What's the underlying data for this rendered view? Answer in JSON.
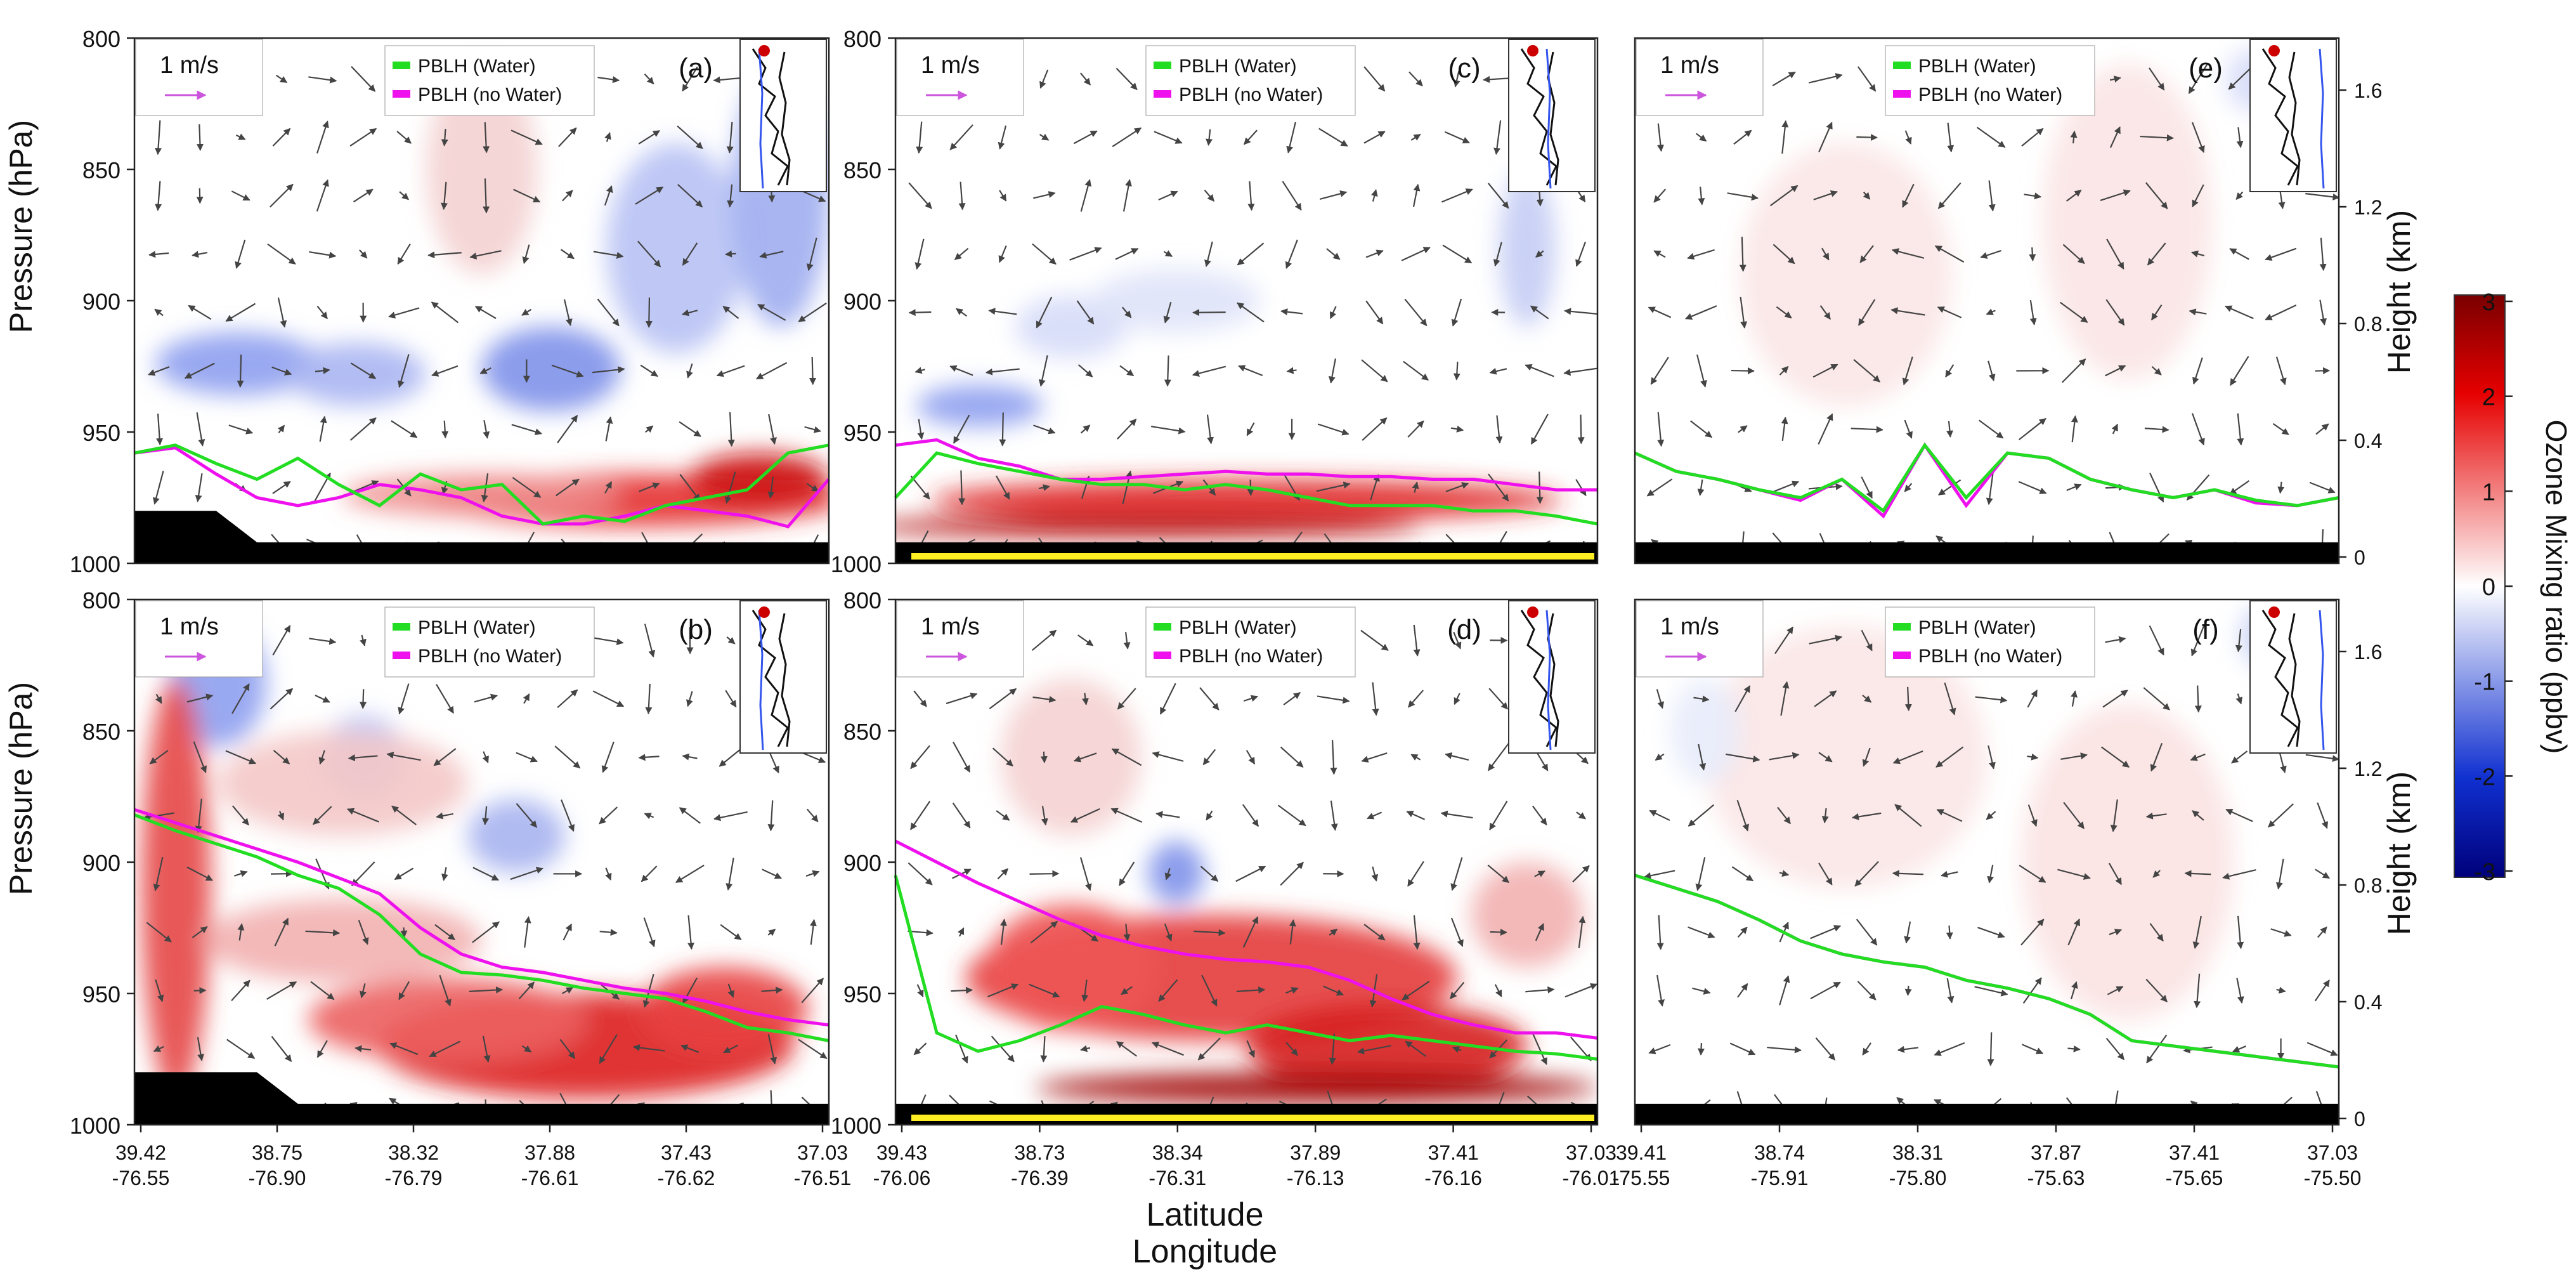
{
  "figure": {
    "xlabel_line1": "Latitude",
    "xlabel_line2": "Longitude",
    "ylabel_left": "Pressure (hPa)",
    "ylabel_right": "Height (km)",
    "colorbar": {
      "label": "Ozone Mixing ratio (ppbv)",
      "ticks": [
        "3",
        "2",
        "1",
        "0",
        "-1",
        "-2",
        "-3"
      ],
      "colors": {
        "max": "#7a0000",
        "high": "#e60000",
        "mid": "#ffffff",
        "low": "#1030d0",
        "min": "#00007a"
      }
    },
    "legend": {
      "water": "PBLH (Water)",
      "nowater": "PBLH (no Water)",
      "water_color": "#22dd22",
      "nowater_color": "#ee11ee"
    },
    "wind_scale_label": "1 m/s",
    "wind_scale_color": "#cc55dd"
  },
  "chart_data": [
    {
      "id": "a",
      "label": "(a)",
      "type": "heatmap",
      "pressure_ticks": [
        "800",
        "850",
        "900",
        "950",
        "1000"
      ],
      "ylim": [
        800,
        1000
      ],
      "x_lat": [
        "39.42",
        "38.75",
        "38.32",
        "37.88",
        "37.43",
        "37.03"
      ],
      "x_lon": [
        "-76.55",
        "-76.90",
        "-76.79",
        "-76.61",
        "-76.62",
        "-76.51"
      ],
      "pblh_water": [
        958,
        955,
        962,
        968,
        960,
        970,
        978,
        966,
        972,
        970,
        985,
        982,
        984,
        978,
        975,
        972,
        958,
        955
      ],
      "pblh_nowater": [
        958,
        956,
        966,
        975,
        978,
        975,
        970,
        972,
        975,
        982,
        985,
        985,
        982,
        978,
        980,
        982,
        986,
        968
      ],
      "terrain": [
        980,
        980,
        980,
        992,
        992,
        992,
        992,
        992,
        992,
        992,
        992,
        992,
        992,
        992,
        992,
        992,
        992,
        992
      ]
    },
    {
      "id": "b",
      "label": "(b)",
      "type": "heatmap",
      "pressure_ticks": [
        "800",
        "850",
        "900",
        "950",
        "1000"
      ],
      "ylim": [
        800,
        1000
      ],
      "x_lat": [
        "39.42",
        "38.75",
        "38.32",
        "37.88",
        "37.43",
        "37.03"
      ],
      "x_lon": [
        "-76.55",
        "-76.90",
        "-76.79",
        "-76.61",
        "-76.62",
        "-76.51"
      ],
      "pblh_water": [
        882,
        888,
        893,
        898,
        905,
        910,
        920,
        935,
        942,
        943,
        945,
        948,
        950,
        952,
        957,
        963,
        965,
        968
      ],
      "pblh_nowater": [
        880,
        885,
        890,
        895,
        900,
        906,
        912,
        925,
        935,
        940,
        942,
        945,
        948,
        950,
        953,
        957,
        960,
        962
      ],
      "terrain": [
        980,
        980,
        980,
        980,
        992,
        992,
        992,
        992,
        992,
        992,
        992,
        992,
        992,
        992,
        992,
        992,
        992,
        992
      ]
    },
    {
      "id": "c",
      "label": "(c)",
      "type": "heatmap",
      "pressure_ticks": [
        "800",
        "850",
        "900",
        "950",
        "1000"
      ],
      "ylim": [
        800,
        1000
      ],
      "x_lat": [
        "39.43",
        "38.73",
        "38.34",
        "37.89",
        "37.41",
        "37.03"
      ],
      "x_lon": [
        "-76.06",
        "-76.39",
        "-76.31",
        "-76.13",
        "-76.16",
        "-76.01"
      ],
      "pblh_water": [
        975,
        958,
        962,
        965,
        968,
        970,
        970,
        972,
        970,
        972,
        975,
        978,
        978,
        978,
        980,
        980,
        982,
        985
      ],
      "pblh_nowater": [
        955,
        953,
        960,
        963,
        968,
        968,
        967,
        966,
        965,
        966,
        966,
        967,
        967,
        968,
        968,
        970,
        972,
        972
      ],
      "terrain": [
        992,
        992,
        992,
        992,
        992,
        992,
        992,
        992,
        992,
        992,
        992,
        992,
        992,
        992,
        992,
        992,
        992,
        992
      ]
    },
    {
      "id": "d",
      "label": "(d)",
      "type": "heatmap",
      "pressure_ticks": [
        "800",
        "850",
        "900",
        "950",
        "1000"
      ],
      "ylim": [
        800,
        1000
      ],
      "x_lat": [
        "39.43",
        "38.73",
        "38.34",
        "37.89",
        "37.41",
        "37.03"
      ],
      "x_lon": [
        "-76.06",
        "-76.39",
        "-76.31",
        "-76.13",
        "-76.16",
        "-76.01"
      ],
      "pblh_water": [
        905,
        965,
        972,
        968,
        962,
        955,
        958,
        962,
        965,
        962,
        965,
        968,
        966,
        968,
        970,
        972,
        973,
        975
      ],
      "pblh_nowater": [
        892,
        900,
        908,
        915,
        922,
        928,
        932,
        935,
        937,
        938,
        940,
        945,
        952,
        958,
        962,
        965,
        965,
        967
      ],
      "terrain": [
        992,
        992,
        992,
        992,
        992,
        992,
        992,
        992,
        992,
        992,
        992,
        992,
        992,
        992,
        992,
        992,
        992,
        992
      ]
    },
    {
      "id": "e",
      "label": "(e)",
      "type": "heatmap",
      "height_ticks": [
        "0",
        "0.4",
        "0.8",
        "1.2",
        "1.6"
      ],
      "ylim": [
        800,
        1000
      ],
      "x_lat": [
        "39.41",
        "38.74",
        "38.31",
        "37.87",
        "37.41",
        "37.03"
      ],
      "x_lon": [
        "-75.55",
        "-75.91",
        "-75.80",
        "-75.63",
        "-75.65",
        "-75.50"
      ],
      "pblh_water": [
        958,
        965,
        968,
        972,
        975,
        968,
        980,
        955,
        975,
        958,
        960,
        968,
        972,
        975,
        972,
        976,
        978,
        975
      ],
      "pblh_nowater": [
        958,
        965,
        968,
        972,
        976,
        968,
        982,
        955,
        978,
        958,
        960,
        968,
        972,
        975,
        972,
        977,
        978,
        975
      ],
      "terrain": [
        992,
        992,
        992,
        992,
        992,
        992,
        992,
        992,
        992,
        992,
        992,
        992,
        992,
        992,
        992,
        992,
        992,
        992
      ]
    },
    {
      "id": "f",
      "label": "(f)",
      "type": "heatmap",
      "height_ticks": [
        "0",
        "0.4",
        "0.8",
        "1.2",
        "1.6"
      ],
      "ylim": [
        800,
        1000
      ],
      "x_lat": [
        "39.41",
        "38.74",
        "38.31",
        "37.87",
        "37.41",
        "37.03"
      ],
      "x_lon": [
        "-75.55",
        "-75.91",
        "-75.80",
        "-75.63",
        "-75.65",
        "-75.50"
      ],
      "pblh_water": [
        905,
        910,
        915,
        922,
        930,
        935,
        938,
        940,
        945,
        948,
        952,
        958,
        968,
        970,
        972,
        974,
        976,
        978
      ],
      "pblh_nowater": [
        905,
        910,
        915,
        922,
        930,
        935,
        938,
        940,
        945,
        948,
        952,
        958,
        968,
        970,
        972,
        974,
        976,
        978
      ],
      "terrain": [
        992,
        992,
        992,
        992,
        992,
        992,
        992,
        992,
        992,
        992,
        992,
        992,
        992,
        992,
        992,
        992,
        992,
        992
      ]
    }
  ]
}
